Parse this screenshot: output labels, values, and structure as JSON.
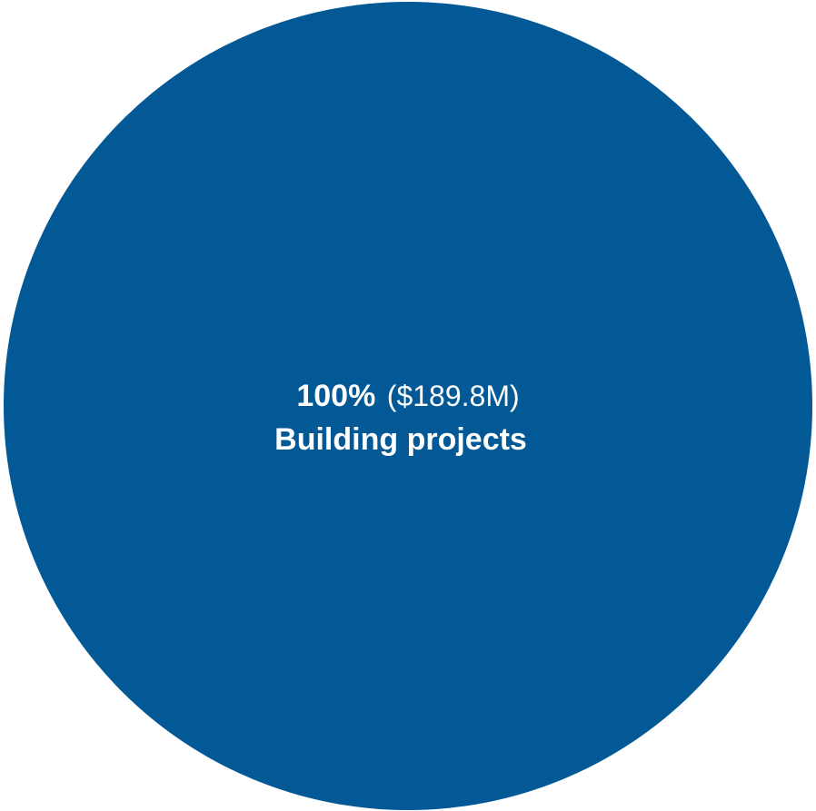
{
  "chart_data": {
    "type": "pie",
    "categories": [
      "Building projects"
    ],
    "values": [
      189.8
    ],
    "percent_labels": [
      "100%"
    ],
    "amount_labels": [
      "($189.8M)"
    ],
    "colors": [
      "#035896"
    ],
    "title": "",
    "legend": "none"
  }
}
